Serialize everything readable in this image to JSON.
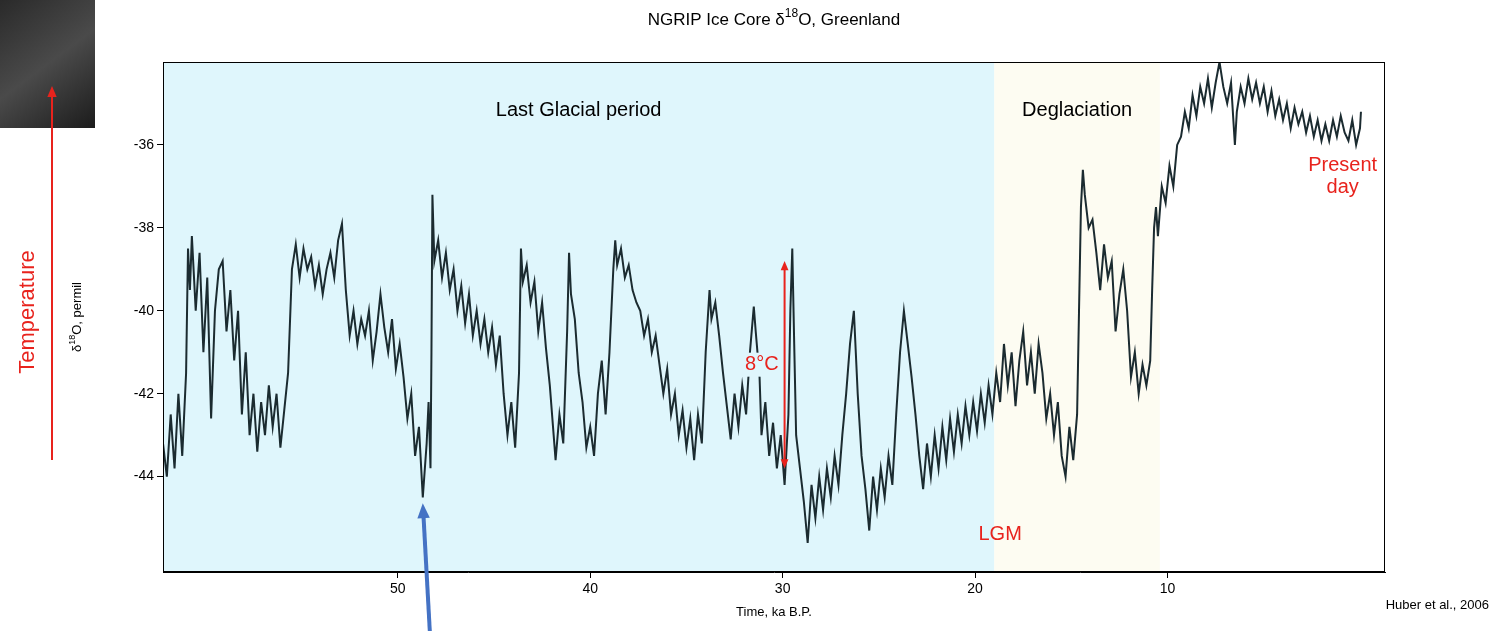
{
  "chart_data": {
    "type": "line",
    "title": "NGRIP Ice Core δ18O, Greenland",
    "x_label": "Time, ka B.P.",
    "y_label": "δ18O, permil",
    "y_arrow": {
      "label": "Temperature",
      "color": "#e8231d"
    },
    "source": "Huber et al., 2006",
    "xlim": [
      62.2,
      -1.3
    ],
    "xticks": [
      50,
      40,
      30,
      20,
      10
    ],
    "ylim": [
      -46.3,
      -34
    ],
    "yticks": [
      -44,
      -42,
      -40,
      -38,
      -36
    ],
    "grid": false,
    "color": "#1b2b30",
    "regions": [
      {
        "label": "Last Glacial period",
        "from": 62.2,
        "to": 19,
        "color": "#dff6fc"
      },
      {
        "label": "Deglaciation",
        "from": 19,
        "to": 10.4,
        "color": "#fdfcf2"
      }
    ],
    "annotations": [
      {
        "text": "Present day",
        "x": 0.9,
        "y": -36.5,
        "color": "#e8231d"
      },
      {
        "text": "LGM",
        "x": 18.7,
        "y": -45.4,
        "color": "#e8231d"
      }
    ],
    "range_arrow": {
      "x": 29.9,
      "from": -38.8,
      "to": -43.8,
      "label": "8°C",
      "color": "#e8231d"
    },
    "pointer": {
      "x": 48.7,
      "y": -44.5,
      "color": "#4472c4"
    },
    "x": [
      62.2,
      62.0,
      61.8,
      61.6,
      61.4,
      61.2,
      61.0,
      60.9,
      60.8,
      60.7,
      60.5,
      60.3,
      60.1,
      59.9,
      59.7,
      59.5,
      59.3,
      59.1,
      58.9,
      58.7,
      58.5,
      58.3,
      58.1,
      57.9,
      57.7,
      57.5,
      57.3,
      57.1,
      56.9,
      56.7,
      56.5,
      56.3,
      56.1,
      55.9,
      55.7,
      55.5,
      55.3,
      55.1,
      54.9,
      54.7,
      54.5,
      54.3,
      54.1,
      53.9,
      53.7,
      53.5,
      53.3,
      53.1,
      52.9,
      52.7,
      52.5,
      52.3,
      52.1,
      51.9,
      51.7,
      51.5,
      51.3,
      51.1,
      50.9,
      50.7,
      50.5,
      50.3,
      50.1,
      49.9,
      49.7,
      49.5,
      49.3,
      49.1,
      48.9,
      48.7,
      48.5,
      48.4,
      48.3,
      48.25,
      48.2,
      48.1,
      47.9,
      47.7,
      47.5,
      47.3,
      47.1,
      46.9,
      46.7,
      46.5,
      46.3,
      46.1,
      45.9,
      45.7,
      45.5,
      45.3,
      45.1,
      44.9,
      44.7,
      44.5,
      44.3,
      44.1,
      43.9,
      43.7,
      43.6,
      43.5,
      43.3,
      43.1,
      42.9,
      42.7,
      42.5,
      42.3,
      42.1,
      41.9,
      41.8,
      41.6,
      41.4,
      41.2,
      41.1,
      41.0,
      40.8,
      40.6,
      40.4,
      40.2,
      40.0,
      39.8,
      39.6,
      39.4,
      39.2,
      39.0,
      38.8,
      38.7,
      38.6,
      38.4,
      38.2,
      38.0,
      37.8,
      37.6,
      37.4,
      37.2,
      37.0,
      36.8,
      36.6,
      36.4,
      36.2,
      36.0,
      35.8,
      35.6,
      35.4,
      35.2,
      35.0,
      34.8,
      34.6,
      34.4,
      34.2,
      34.0,
      33.8,
      33.7,
      33.5,
      33.3,
      33.1,
      32.9,
      32.7,
      32.5,
      32.3,
      32.1,
      31.9,
      31.7,
      31.5,
      31.4,
      31.2,
      31.1,
      30.9,
      30.7,
      30.5,
      30.3,
      30.1,
      29.9,
      29.7,
      29.6,
      29.5,
      29.4,
      29.3,
      29.1,
      28.9,
      28.7,
      28.5,
      28.3,
      28.1,
      27.9,
      27.7,
      27.5,
      27.3,
      27.1,
      26.9,
      26.7,
      26.5,
      26.3,
      26.1,
      25.9,
      25.7,
      25.5,
      25.3,
      25.1,
      24.9,
      24.7,
      24.5,
      24.3,
      24.1,
      23.9,
      23.7,
      23.5,
      23.3,
      23.1,
      22.9,
      22.7,
      22.5,
      22.3,
      22.1,
      21.9,
      21.7,
      21.5,
      21.3,
      21.1,
      20.9,
      20.7,
      20.5,
      20.3,
      20.1,
      19.9,
      19.7,
      19.5,
      19.3,
      19.1,
      18.9,
      18.7,
      18.5,
      18.3,
      18.1,
      17.9,
      17.7,
      17.5,
      17.3,
      17.1,
      16.9,
      16.7,
      16.5,
      16.3,
      16.1,
      15.9,
      15.7,
      15.5,
      15.3,
      15.1,
      14.9,
      14.7,
      14.6,
      14.5,
      14.4,
      14.3,
      14.1,
      13.9,
      13.7,
      13.5,
      13.3,
      13.1,
      12.9,
      12.7,
      12.5,
      12.3,
      12.1,
      11.9,
      11.7,
      11.5,
      11.3,
      11.1,
      10.9,
      10.8,
      10.7,
      10.6,
      10.5,
      10.3,
      10.1,
      9.9,
      9.7,
      9.5,
      9.3,
      9.1,
      8.9,
      8.7,
      8.5,
      8.3,
      8.1,
      7.9,
      7.7,
      7.5,
      7.3,
      7.1,
      6.9,
      6.7,
      6.5,
      6.4,
      6.2,
      6.0,
      5.8,
      5.6,
      5.4,
      5.2,
      5.0,
      4.8,
      4.6,
      4.4,
      4.2,
      4.0,
      3.8,
      3.6,
      3.4,
      3.2,
      3.0,
      2.8,
      2.6,
      2.4,
      2.2,
      2.0,
      1.8,
      1.6,
      1.4,
      1.2,
      1.0,
      0.8,
      0.6,
      0.4,
      0.2,
      0.0,
      -0.05
    ],
    "values": [
      -43.2,
      -44.0,
      -42.5,
      -43.8,
      -42.0,
      -43.5,
      -41.5,
      -38.5,
      -39.5,
      -38.2,
      -40.0,
      -38.6,
      -41.0,
      -39.2,
      -42.6,
      -40.0,
      -39.0,
      -38.8,
      -40.5,
      -39.5,
      -41.2,
      -40.0,
      -42.5,
      -41.0,
      -43.0,
      -42.0,
      -43.4,
      -42.2,
      -43.0,
      -41.8,
      -42.8,
      -42.0,
      -43.3,
      -42.4,
      -41.5,
      -39.0,
      -38.4,
      -39.2,
      -38.5,
      -39.0,
      -38.7,
      -39.4,
      -38.9,
      -39.6,
      -39.0,
      -38.6,
      -39.2,
      -38.3,
      -37.9,
      -39.5,
      -40.6,
      -40.0,
      -40.8,
      -40.2,
      -40.6,
      -40.0,
      -41.2,
      -40.5,
      -39.6,
      -40.4,
      -41.0,
      -40.2,
      -41.4,
      -40.8,
      -41.6,
      -42.6,
      -42.0,
      -43.5,
      -42.8,
      -44.5,
      -43.2,
      -42.2,
      -43.8,
      -41.0,
      -37.2,
      -38.8,
      -38.3,
      -39.2,
      -38.6,
      -39.5,
      -39.0,
      -40.0,
      -39.4,
      -40.3,
      -39.6,
      -40.6,
      -40.0,
      -40.8,
      -40.2,
      -41.0,
      -40.4,
      -41.3,
      -40.6,
      -42.0,
      -43.0,
      -42.2,
      -43.3,
      -41.5,
      -38.5,
      -39.3,
      -38.9,
      -39.8,
      -39.3,
      -40.5,
      -39.8,
      -40.9,
      -41.8,
      -43.0,
      -43.6,
      -42.5,
      -43.2,
      -40.5,
      -38.6,
      -39.6,
      -40.2,
      -41.5,
      -42.2,
      -43.3,
      -42.8,
      -43.5,
      -42.0,
      -41.2,
      -42.5,
      -41.0,
      -39.0,
      -38.3,
      -38.9,
      -38.5,
      -39.2,
      -38.9,
      -39.5,
      -39.8,
      -40.0,
      -40.6,
      -40.2,
      -41.0,
      -40.6,
      -41.3,
      -42.0,
      -41.4,
      -42.5,
      -42.0,
      -43.0,
      -42.4,
      -43.3,
      -42.6,
      -43.6,
      -42.5,
      -43.2,
      -41.0,
      -39.5,
      -40.2,
      -39.8,
      -40.6,
      -41.5,
      -42.3,
      -43.1,
      -42.0,
      -42.8,
      -41.8,
      -42.5,
      -41.0,
      -39.9,
      -40.5,
      -41.6,
      -43.0,
      -42.2,
      -43.5,
      -42.7,
      -43.8,
      -43.0,
      -44.2,
      -42.5,
      -40.0,
      -38.5,
      -40.8,
      -43.0,
      -43.8,
      -44.6,
      -45.6,
      -44.2,
      -45.0,
      -44.0,
      -44.8,
      -43.8,
      -44.5,
      -43.5,
      -44.2,
      -43.0,
      -42.0,
      -40.8,
      -40.0,
      -42.0,
      -43.5,
      -44.3,
      -45.3,
      -44.0,
      -44.8,
      -43.8,
      -44.5,
      -43.5,
      -44.2,
      -42.5,
      -41.0,
      -40.0,
      -40.8,
      -41.6,
      -42.5,
      -43.5,
      -44.3,
      -43.2,
      -44.0,
      -43.0,
      -43.8,
      -42.8,
      -43.6,
      -42.6,
      -43.4,
      -42.5,
      -43.2,
      -42.3,
      -43.0,
      -42.2,
      -42.9,
      -42.0,
      -42.7,
      -41.8,
      -42.5,
      -41.5,
      -42.2,
      -40.8,
      -41.8,
      -41.0,
      -42.3,
      -41.2,
      -40.5,
      -41.8,
      -41.0,
      -42.0,
      -40.8,
      -41.5,
      -42.6,
      -42.0,
      -43.0,
      -42.2,
      -43.5,
      -44.0,
      -42.8,
      -43.6,
      -42.5,
      -40.0,
      -37.5,
      -36.6,
      -37.2,
      -38.0,
      -37.8,
      -38.6,
      -39.5,
      -38.4,
      -39.2,
      -38.8,
      -40.5,
      -39.6,
      -39.0,
      -40.0,
      -41.6,
      -41.0,
      -42.0,
      -41.3,
      -41.8,
      -41.2,
      -39.5,
      -38.0,
      -37.5,
      -38.2,
      -37.0,
      -37.4,
      -36.5,
      -37.0,
      -36.0,
      -35.8,
      -35.2,
      -35.6,
      -34.8,
      -35.3,
      -34.6,
      -35.0,
      -34.4,
      -35.1,
      -34.5,
      -34.0,
      -34.6,
      -35.0,
      -34.5,
      -36.0,
      -35.2,
      -34.6,
      -35.0,
      -34.4,
      -34.9,
      -34.5,
      -35.0,
      -34.6,
      -35.2,
      -34.7,
      -35.3,
      -34.9,
      -35.4,
      -35.0,
      -35.6,
      -35.1,
      -35.5,
      -35.2,
      -35.7,
      -35.3,
      -35.8,
      -35.4,
      -35.9,
      -35.5,
      -35.9,
      -35.4,
      -35.8,
      -35.3,
      -35.7,
      -35.9,
      -35.4,
      -36.0,
      -35.6,
      -35.2
    ]
  }
}
